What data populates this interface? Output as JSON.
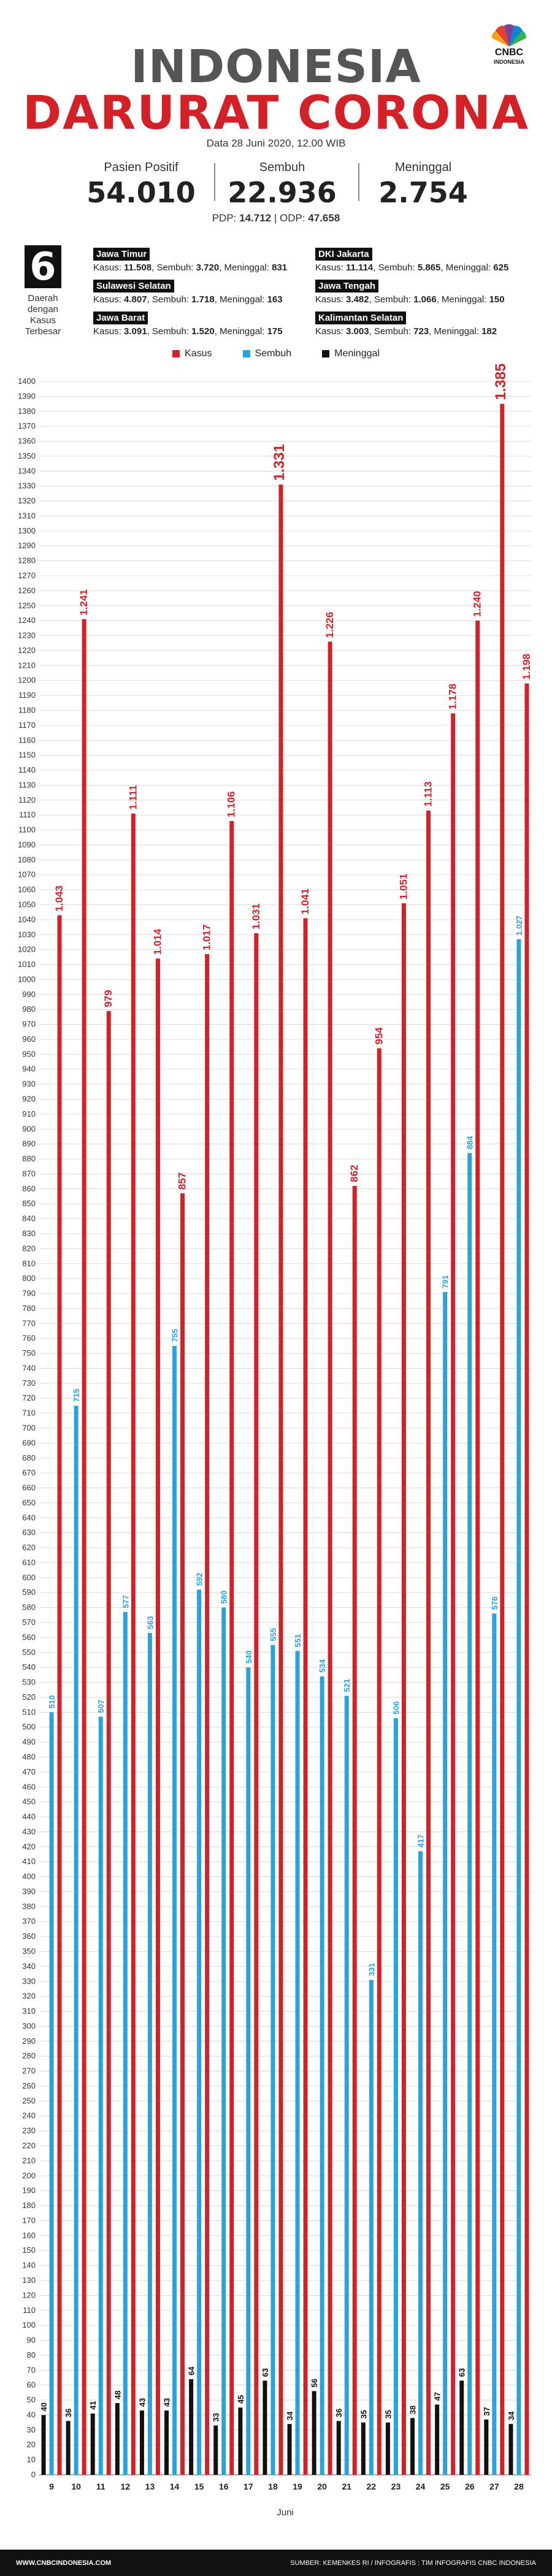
{
  "header": {
    "title_line1": "INDONESIA",
    "title_line2": "DARURAT CORONA",
    "date": "Data 28 Juni 2020, 12.00 WIB",
    "logo_text": "CNBC",
    "logo_sub": "INDONESIA"
  },
  "stats": [
    {
      "label": "Pasien Positif",
      "value": "54.010"
    },
    {
      "label": "Sembuh",
      "value": "22.936"
    },
    {
      "label": "Meninggal",
      "value": "2.754"
    }
  ],
  "pdp_odp": {
    "pdp_label": "PDP:",
    "pdp_value": "14.712",
    "sep": "|",
    "odp_label": "ODP:",
    "odp_value": "47.658"
  },
  "regions_box": {
    "number": "6",
    "caption_l1": "Daerah",
    "caption_l2": "dengan",
    "caption_l3": "Kasus",
    "caption_l4": "Terbesar"
  },
  "regions": [
    {
      "name": "Jawa Timur",
      "kasus": "11.508",
      "sembuh": "3.720",
      "meninggal": "831"
    },
    {
      "name": "DKI Jakarta",
      "kasus": "11.114",
      "sembuh": "5.865",
      "meninggal": "625"
    },
    {
      "name": "Sulawesi Selatan",
      "kasus": "4.807",
      "sembuh": "1.718",
      "meninggal": "163"
    },
    {
      "name": "Jawa Tengah",
      "kasus": "3.482",
      "sembuh": "1.066",
      "meninggal": "150"
    },
    {
      "name": "Jawa Barat",
      "kasus": "3.091",
      "sembuh": "1.520",
      "meninggal": "175"
    },
    {
      "name": "Kalimantan Selatan",
      "kasus": "3.003",
      "sembuh": "723",
      "meninggal": "182"
    }
  ],
  "region_labels": {
    "kasus": "Kasus:",
    "sembuh": "Sembuh:",
    "meninggal": "Meninggal:"
  },
  "legend": [
    {
      "label": "Kasus",
      "color": "#d42027"
    },
    {
      "label": "Sembuh",
      "color": "#29a3e0"
    },
    {
      "label": "Meninggal",
      "color": "#111111"
    }
  ],
  "chart_data": {
    "type": "bar",
    "xlabel": "Juni",
    "ylabel": "",
    "ylim": [
      0,
      1400
    ],
    "ytick_step": 10,
    "grid": true,
    "categories": [
      "9",
      "10",
      "11",
      "12",
      "13",
      "14",
      "15",
      "16",
      "17",
      "18",
      "19",
      "20",
      "21",
      "22",
      "23",
      "24",
      "25",
      "26",
      "27",
      "28"
    ],
    "series": [
      {
        "name": "Kasus",
        "color": "#d42027",
        "values": [
          1043,
          1241,
          979,
          1111,
          1014,
          857,
          1017,
          1106,
          1031,
          1331,
          1041,
          1226,
          862,
          954,
          1051,
          1113,
          1178,
          1240,
          1385,
          1198
        ],
        "labels": [
          "1.043",
          "1.241",
          "979",
          "1.111",
          "1.014",
          "857",
          "1.017",
          "1.106",
          "1.031",
          "1.331",
          "1.041",
          "1.226",
          "862",
          "954",
          "1.051",
          "1.113",
          "1.178",
          "1.240",
          "1.385",
          "1.198"
        ]
      },
      {
        "name": "Sembuh",
        "color": "#29a3e0",
        "values": [
          510,
          715,
          507,
          577,
          563,
          755,
          592,
          580,
          540,
          555,
          551,
          534,
          521,
          331,
          506,
          417,
          791,
          884,
          576,
          1027
        ],
        "labels": [
          "510",
          "715",
          "507",
          "577",
          "563",
          "755",
          "592",
          "580",
          "540",
          "555",
          "551",
          "534",
          "521",
          "331",
          "506",
          "417",
          "791",
          "884",
          "576",
          "1.027"
        ]
      },
      {
        "name": "Meninggal",
        "color": "#111111",
        "values": [
          40,
          36,
          41,
          48,
          43,
          43,
          64,
          33,
          45,
          63,
          34,
          56,
          36,
          35,
          35,
          38,
          47,
          63,
          37,
          34
        ],
        "labels": [
          "40",
          "36",
          "41",
          "48",
          "43",
          "43",
          "64",
          "33",
          "45",
          "63",
          "34",
          "56",
          "36",
          "35",
          "35",
          "38",
          "47",
          "63",
          "37",
          "34"
        ]
      }
    ]
  },
  "footer": {
    "left": "WWW.CNBCINDONESIA.COM",
    "right": "SUMBER: KEMENKES RI / INFOGRAFIS : TIM INFOGRAFIS CNBC INDONESIA"
  }
}
